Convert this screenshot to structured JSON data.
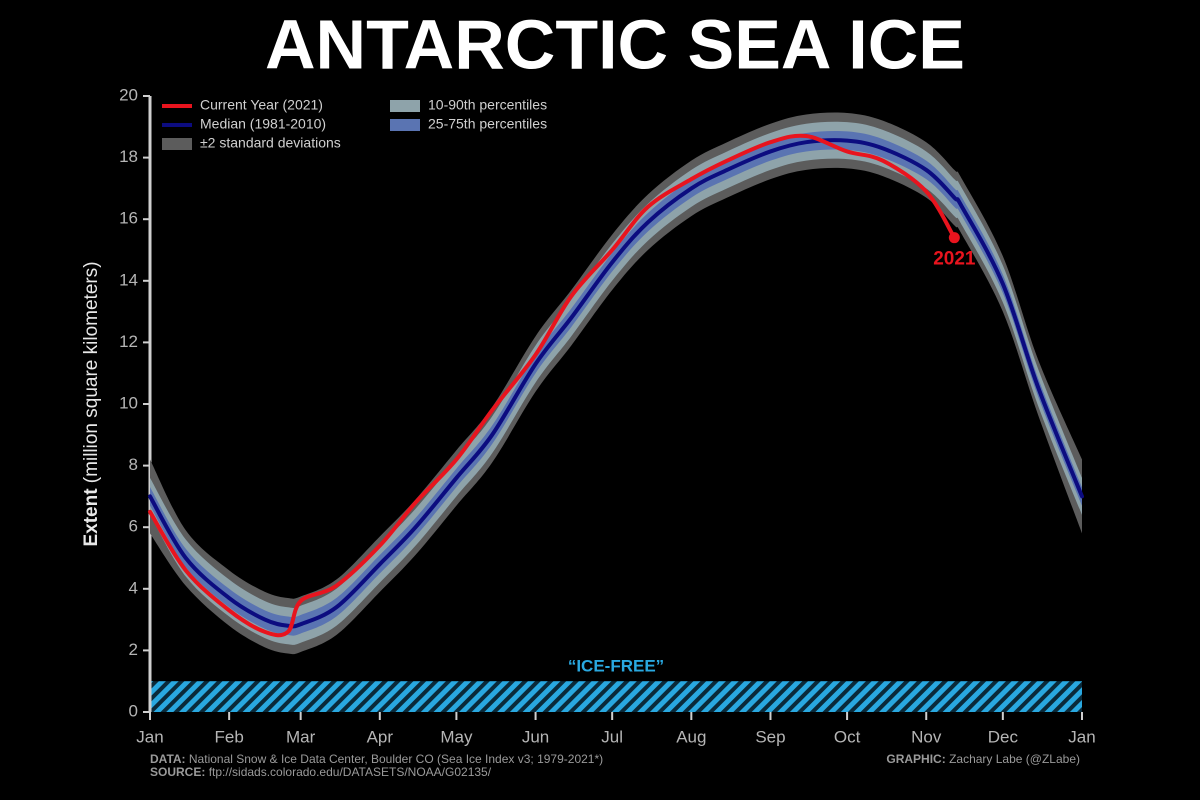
{
  "chart_data": {
    "type": "line",
    "title": "ANTARCTIC SEA ICE",
    "y_label_bold": "Extent",
    "y_label": "(million square kilometers)",
    "x": [
      1,
      15,
      32,
      46,
      55,
      60,
      74,
      91,
      105,
      121,
      135,
      152,
      166,
      182,
      196,
      213,
      227,
      244,
      258,
      274,
      288,
      305,
      316,
      319,
      335,
      349,
      366
    ],
    "xlim": [
      1,
      366
    ],
    "xticks": [
      {
        "value": 1,
        "label": "Jan"
      },
      {
        "value": 32,
        "label": "Feb"
      },
      {
        "value": 60,
        "label": "Mar"
      },
      {
        "value": 91,
        "label": "Apr"
      },
      {
        "value": 121,
        "label": "May"
      },
      {
        "value": 152,
        "label": "Jun"
      },
      {
        "value": 182,
        "label": "Jul"
      },
      {
        "value": 213,
        "label": "Aug"
      },
      {
        "value": 244,
        "label": "Sep"
      },
      {
        "value": 274,
        "label": "Oct"
      },
      {
        "value": 305,
        "label": "Nov"
      },
      {
        "value": 335,
        "label": "Dec"
      },
      {
        "value": 366,
        "label": "Jan"
      }
    ],
    "ylim": [
      0,
      20
    ],
    "yticks": [
      0,
      2,
      4,
      6,
      8,
      10,
      12,
      14,
      16,
      18,
      20
    ],
    "series": [
      {
        "name": "Current Year (2021)",
        "color": "#e8141e",
        "label": "2021",
        "values": [
          6.5,
          4.6,
          3.3,
          2.6,
          2.6,
          3.6,
          4.1,
          5.4,
          6.8,
          8.2,
          9.8,
          11.6,
          13.5,
          15.0,
          16.4,
          17.3,
          17.9,
          18.5,
          18.7,
          18.2,
          17.9,
          16.9,
          15.4,
          null,
          null,
          null,
          null
        ]
      },
      {
        "name": "Median (1981-2010)",
        "color": "#0c0c80",
        "values": [
          7.0,
          5.0,
          3.7,
          3.0,
          2.8,
          2.85,
          3.4,
          4.8,
          6.0,
          7.6,
          9.0,
          11.3,
          12.8,
          14.6,
          15.9,
          17.0,
          17.6,
          18.2,
          18.5,
          18.55,
          18.3,
          17.6,
          16.7,
          16.4,
          13.9,
          10.5,
          7.0
        ]
      },
      {
        "name": "±2 standard deviations",
        "color": "#5c5c5c",
        "lower": [
          5.8,
          4.1,
          2.8,
          2.1,
          1.9,
          1.95,
          2.5,
          3.9,
          5.1,
          6.7,
          8.1,
          10.4,
          11.9,
          13.7,
          15.0,
          16.1,
          16.7,
          17.3,
          17.6,
          17.65,
          17.4,
          16.7,
          15.8,
          15.5,
          13.0,
          9.6,
          5.8
        ],
        "upper": [
          8.2,
          5.9,
          4.6,
          3.9,
          3.7,
          3.75,
          4.3,
          5.7,
          6.9,
          8.5,
          9.9,
          12.2,
          13.7,
          15.5,
          16.8,
          17.9,
          18.5,
          19.1,
          19.4,
          19.45,
          19.2,
          18.5,
          17.6,
          17.3,
          14.8,
          11.4,
          8.2
        ]
      },
      {
        "name": "10-90th percentiles",
        "color": "#8ea3aa",
        "lower": [
          6.4,
          4.4,
          3.1,
          2.4,
          2.2,
          2.25,
          2.8,
          4.2,
          5.4,
          7.0,
          8.4,
          10.7,
          12.2,
          14.0,
          15.3,
          16.4,
          17.0,
          17.6,
          17.9,
          17.95,
          17.7,
          17.0,
          16.1,
          15.8,
          13.3,
          9.9,
          6.4
        ],
        "upper": [
          7.6,
          5.6,
          4.3,
          3.6,
          3.4,
          3.45,
          4.0,
          5.4,
          6.6,
          8.2,
          9.6,
          11.9,
          13.4,
          15.2,
          16.5,
          17.6,
          18.2,
          18.8,
          19.1,
          19.15,
          18.9,
          18.2,
          17.3,
          17.0,
          14.5,
          11.1,
          7.6
        ]
      },
      {
        "name": "25-75th percentiles",
        "color": "#5a74b2",
        "lower": [
          6.7,
          4.7,
          3.4,
          2.7,
          2.5,
          2.55,
          3.1,
          4.5,
          5.7,
          7.3,
          8.7,
          11.0,
          12.5,
          14.3,
          15.6,
          16.7,
          17.3,
          17.9,
          18.2,
          18.25,
          18.0,
          17.3,
          16.4,
          16.1,
          13.6,
          10.2,
          6.7
        ],
        "upper": [
          7.3,
          5.3,
          4.0,
          3.3,
          3.1,
          3.15,
          3.7,
          5.1,
          6.3,
          7.9,
          9.3,
          11.6,
          13.1,
          14.9,
          16.2,
          17.3,
          17.9,
          18.5,
          18.8,
          18.85,
          18.6,
          17.9,
          17.0,
          16.7,
          14.2,
          10.8,
          7.3
        ]
      }
    ],
    "ice_free": {
      "label": "“ICE-FREE”",
      "range": [
        0,
        1
      ],
      "color": "#29a8e0"
    },
    "footer": {
      "data_label": "DATA:",
      "data": "National Snow & Ice Data Center, Boulder CO (Sea Ice Index v3; 1979-2021*)",
      "source_label": "SOURCE:",
      "source": "ftp://sidads.colorado.edu/DATASETS/NOAA/G02135/",
      "graphic_label": "GRAPHIC:",
      "graphic": "Zachary Labe (@ZLabe)"
    }
  }
}
